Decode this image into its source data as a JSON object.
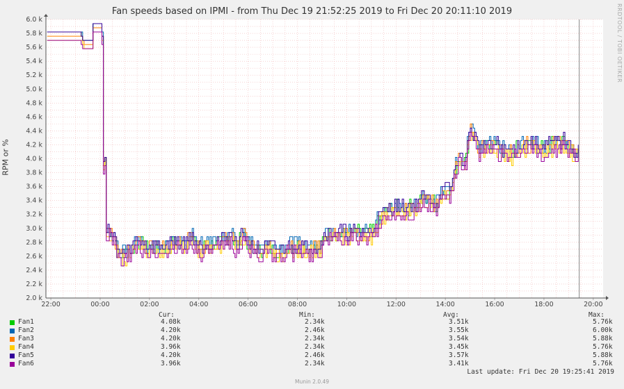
{
  "chart_data": {
    "type": "line",
    "title": "Fan speeds based on IPMI - from Thu Dec 19 21:52:25 2019 to Fri Dec 20 20:11:10 2019",
    "ylabel": "RPM or %",
    "side_text": "RRDTOOL / TOBI OETIKER",
    "ylim": [
      2000,
      6000
    ],
    "xlim_hours": [
      -2.2,
      20.4
    ],
    "x_ticks": [
      "22:00",
      "00:00",
      "02:00",
      "04:00",
      "06:00",
      "08:00",
      "10:00",
      "12:00",
      "14:00",
      "16:00",
      "18:00",
      "20:00"
    ],
    "y_ticks": [
      "2.0 k",
      "2.2 k",
      "2.4 k",
      "2.6 k",
      "2.8 k",
      "3.0 k",
      "3.2 k",
      "3.4 k",
      "3.6 k",
      "3.8 k",
      "4.0 k",
      "4.2 k",
      "4.4 k",
      "4.6 k",
      "4.8 k",
      "5.0 k",
      "5.2 k",
      "5.4 k",
      "5.6 k",
      "5.8 k",
      "6.0 k"
    ],
    "grid": true,
    "series": [
      {
        "name": "Fan1",
        "color": "#00cc00",
        "offset": 60
      },
      {
        "name": "Fan2",
        "color": "#0066b3",
        "offset": 120
      },
      {
        "name": "Fan3",
        "color": "#ff8000",
        "offset": 40
      },
      {
        "name": "Fan4",
        "color": "#ffcc00",
        "offset": -60
      },
      {
        "name": "Fan5",
        "color": "#330099",
        "offset": 100
      },
      {
        "name": "Fan6",
        "color": "#990099",
        "offset": -120
      }
    ],
    "base_points": [
      [
        -2.2,
        5760
      ],
      [
        -0.8,
        5760
      ],
      [
        -0.7,
        5640
      ],
      [
        -0.35,
        5640
      ],
      [
        -0.3,
        5880
      ],
      [
        0.05,
        5880
      ],
      [
        0.1,
        5500
      ],
      [
        0.15,
        2800
      ],
      [
        0.2,
        4270
      ],
      [
        0.25,
        2900
      ],
      [
        0.3,
        3000
      ],
      [
        0.6,
        2800
      ],
      [
        0.7,
        2600
      ],
      [
        1.0,
        2600
      ],
      [
        1.3,
        2700
      ],
      [
        1.5,
        2800
      ],
      [
        1.9,
        2700
      ],
      [
        2.3,
        2700
      ],
      [
        2.6,
        2700
      ],
      [
        3.1,
        2760
      ],
      [
        3.5,
        2760
      ],
      [
        3.7,
        2900
      ],
      [
        3.9,
        2700
      ],
      [
        4.2,
        2700
      ],
      [
        4.6,
        2760
      ],
      [
        4.9,
        2760
      ],
      [
        5.3,
        2880
      ],
      [
        5.5,
        2700
      ],
      [
        5.8,
        2880
      ],
      [
        6.0,
        2760
      ],
      [
        6.4,
        2640
      ],
      [
        6.8,
        2700
      ],
      [
        7.2,
        2640
      ],
      [
        7.6,
        2700
      ],
      [
        8.0,
        2700
      ],
      [
        8.6,
        2700
      ],
      [
        8.9,
        2700
      ],
      [
        9.1,
        2900
      ],
      [
        10.6,
        2900
      ],
      [
        11.0,
        2900
      ],
      [
        11.4,
        3160
      ],
      [
        11.8,
        3260
      ],
      [
        12.4,
        3260
      ],
      [
        12.8,
        3300
      ],
      [
        13.0,
        3380
      ],
      [
        13.4,
        3380
      ],
      [
        13.6,
        3300
      ],
      [
        13.9,
        3500
      ],
      [
        14.2,
        3500
      ],
      [
        14.5,
        4000
      ],
      [
        14.8,
        3900
      ],
      [
        15.0,
        4400
      ],
      [
        15.4,
        4100
      ],
      [
        15.8,
        4200
      ],
      [
        16.3,
        4100
      ],
      [
        16.6,
        4040
      ],
      [
        17.0,
        4140
      ],
      [
        17.5,
        4200
      ],
      [
        18.0,
        4100
      ],
      [
        18.4,
        4200
      ],
      [
        18.8,
        4200
      ],
      [
        19.3,
        4050
      ],
      [
        19.4,
        4080
      ]
    ],
    "current_time_hour": 19.43
  },
  "legend": {
    "headers": {
      "cur": "Cur:",
      "min": "Min:",
      "avg": "Avg:",
      "max": "Max:"
    },
    "rows": [
      {
        "name": "Fan1",
        "color": "#00cc00",
        "cur": "4.08k",
        "min": "2.34k",
        "avg": "3.51k",
        "max": "5.76k"
      },
      {
        "name": "Fan2",
        "color": "#0066b3",
        "cur": "4.20k",
        "min": "2.46k",
        "avg": "3.55k",
        "max": "6.00k"
      },
      {
        "name": "Fan3",
        "color": "#ff8000",
        "cur": "4.20k",
        "min": "2.34k",
        "avg": "3.54k",
        "max": "5.88k"
      },
      {
        "name": "Fan4",
        "color": "#ffcc00",
        "cur": "3.96k",
        "min": "2.34k",
        "avg": "3.45k",
        "max": "5.76k"
      },
      {
        "name": "Fan5",
        "color": "#330099",
        "cur": "4.20k",
        "min": "2.46k",
        "avg": "3.57k",
        "max": "5.88k"
      },
      {
        "name": "Fan6",
        "color": "#990099",
        "cur": "3.96k",
        "min": "2.34k",
        "avg": "3.41k",
        "max": "5.76k"
      }
    ]
  },
  "footer": {
    "last_update": "Last update: Fri Dec 20 19:25:41 2019",
    "version": "Munin 2.0.49"
  }
}
